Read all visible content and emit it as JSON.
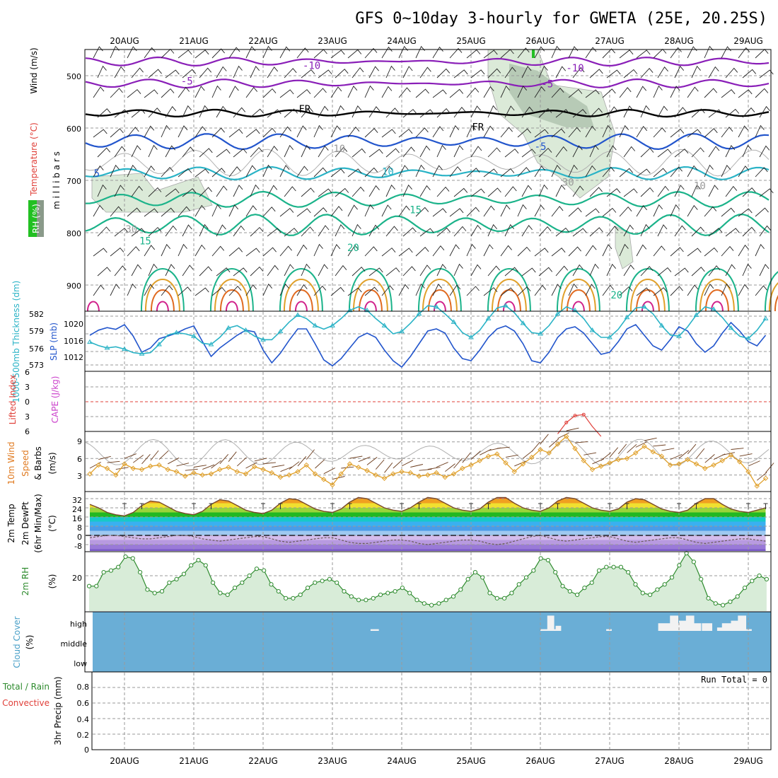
{
  "title": "GFS 0~10day 3-hourly for GWETA (25E, 20.25S)",
  "dates": [
    "20AUG",
    "21AUG",
    "22AUG",
    "23AUG",
    "24AUG",
    "25AUG",
    "26AUG",
    "27AUG",
    "28AUG",
    "29AUG"
  ],
  "run_total": "Run Total = 0",
  "colors": {
    "purple": "#8a1fb8",
    "blue": "#2255cc",
    "cyan": "#2ab3c6",
    "teal": "#1bb38a",
    "orange": "#e0a02a",
    "red": "#e06a20",
    "magenta": "#d0208a",
    "cloud": "#6aaed6",
    "rh_fill": "#d8ecd8",
    "rh_line": "#2e8b2e"
  },
  "chart_data": [
    {
      "id": "upper-air",
      "type": "contour",
      "ylabel_parts": [
        {
          "text": "Wind (m/s)",
          "color": "#000000"
        },
        {
          "text": "Temperature (°C)",
          "color": "#e0403a"
        },
        {
          "text": "RH (%)",
          "color": "#2e8b2e"
        }
      ],
      "y_unit_label": "m i l l i b a r s",
      "y_ticks": [
        500,
        600,
        700,
        800,
        900
      ],
      "ylim": [
        455,
        940
      ],
      "contour_labels": [
        {
          "text": "-10",
          "day": 2.7,
          "p": 487,
          "color": "#8a1fb8"
        },
        {
          "text": "-10",
          "day": 6.5,
          "p": 492,
          "color": "#8a1fb8"
        },
        {
          "text": "-5",
          "day": 0.9,
          "p": 517,
          "color": "#8a1fb8"
        },
        {
          "text": "-5",
          "day": 6.1,
          "p": 522,
          "color": "#8a1fb8"
        },
        {
          "text": "FR",
          "day": 2.6,
          "p": 570,
          "color": "#000000"
        },
        {
          "text": "FR",
          "day": 5.1,
          "p": 605,
          "color": "#000000"
        },
        {
          "text": "-5",
          "day": 6.0,
          "p": 642,
          "color": "#2255cc"
        },
        {
          "text": "5",
          "day": -0.4,
          "p": 693,
          "color": "#2255cc"
        },
        {
          "text": "10",
          "day": 3.8,
          "p": 690,
          "color": "#2ab3c6"
        },
        {
          "text": "15",
          "day": 4.2,
          "p": 763,
          "color": "#1bb38a"
        },
        {
          "text": "15",
          "day": 0.3,
          "p": 822,
          "color": "#1bb38a"
        },
        {
          "text": "20",
          "day": 3.3,
          "p": 835,
          "color": "#1bb38a"
        },
        {
          "text": "20",
          "day": 7.1,
          "p": 926,
          "color": "#1bb38a"
        },
        {
          "text": "10",
          "day": 3.1,
          "p": 646,
          "color": "#9a9a9a"
        },
        {
          "text": "10",
          "day": 8.3,
          "p": 717,
          "color": "#9a9a9a"
        },
        {
          "text": "30",
          "day": 0.1,
          "p": 800,
          "color": "#9a9a9a"
        },
        {
          "text": "30",
          "day": 6.4,
          "p": 710,
          "color": "#9a9a9a"
        }
      ]
    },
    {
      "id": "thickness-slp",
      "type": "line",
      "ylabel_parts": [
        {
          "text": "1000-500mb Thickness (dm)",
          "color": "#2ab3c6"
        },
        {
          "text": "SLP (mb)",
          "color": "#2255cc"
        }
      ],
      "thickness_ticks": [
        573,
        576,
        579,
        582
      ],
      "slp_ticks": [
        1012,
        1016,
        1020
      ],
      "series": [
        {
          "name": "SLP (mb)",
          "color": "#2255cc",
          "values": [
            1018.0,
            1019.2,
            1019.8,
            1019.4,
            1020.5,
            1017.8,
            1014.0,
            1015.0,
            1017.2,
            1017.8,
            1018.5,
            1019.5,
            1020.2,
            1016.5,
            1013.0,
            1015.0,
            1016.5,
            1018.0,
            1019.2,
            1018.8,
            1014.5,
            1011.5,
            1013.8,
            1016.8,
            1019.5,
            1019.5,
            1016.0,
            1012.2,
            1010.8,
            1012.5,
            1015.0,
            1017.5,
            1018.5,
            1017.5,
            1014.5,
            1012.0,
            1010.5,
            1013.0,
            1016.0,
            1019.0,
            1019.5,
            1018.5,
            1015.0,
            1012.5,
            1012.0,
            1014.5,
            1017.5,
            1019.5,
            1020.2,
            1019.0,
            1016.0,
            1012.0,
            1011.5,
            1014.0,
            1017.5,
            1019.5,
            1020.0,
            1018.5,
            1016.0,
            1013.5,
            1014.0,
            1016.5,
            1019.5,
            1020.5,
            1018.0,
            1015.5,
            1014.5,
            1017.0,
            1020.0,
            1019.0,
            1016.0,
            1014.0,
            1015.5,
            1018.5,
            1021.0,
            1019.0,
            1016.5,
            1015.5,
            1018.0,
            1020.5,
            1021.5
          ]
        },
        {
          "name": "1000-500mb Thickness (dm)",
          "color": "#2ab3c6",
          "values": [
            574.6,
            574.0,
            573.6,
            573.8,
            573.4,
            572.8,
            572.6,
            572.8,
            574.2,
            575.8,
            576.2,
            576.0,
            575.6,
            574.4,
            574.2,
            575.4,
            577.0,
            577.4,
            576.6,
            575.6,
            575.0,
            575.0,
            576.4,
            578.0,
            579.2,
            578.6,
            577.4,
            576.8,
            577.4,
            578.6,
            580.0,
            580.6,
            580.0,
            578.6,
            577.4,
            576.0,
            576.4,
            577.8,
            579.4,
            580.8,
            580.6,
            579.4,
            578.0,
            576.2,
            575.4,
            576.6,
            578.6,
            580.4,
            580.8,
            579.6,
            577.8,
            576.2,
            576.0,
            577.4,
            579.4,
            580.6,
            580.0,
            578.6,
            576.6,
            575.4,
            575.4,
            576.8,
            578.8,
            580.4,
            580.6,
            579.4,
            577.4,
            575.8,
            575.6,
            577.2,
            579.2,
            580.6,
            580.2,
            578.8,
            577.0,
            575.6,
            575.2,
            576.6,
            578.6,
            580.0,
            579.6
          ]
        }
      ]
    },
    {
      "id": "cape-li",
      "type": "line",
      "ylabel_parts": [
        {
          "text": "CAPE (J/kg)",
          "color": "#cc44cc"
        },
        {
          "text": "Lifted Index",
          "color": "#e0403a"
        }
      ],
      "li_ticks": [
        "6",
        "3",
        "0",
        "3",
        "6"
      ],
      "series": [
        {
          "name": "Lifted Index",
          "color": "#e0403a",
          "day_start": 6.25,
          "day_step": 0.125,
          "values": [
            6.5,
            4.2,
            2.8,
            2.6,
            5.0,
            7.0
          ]
        }
      ]
    },
    {
      "id": "wind10m",
      "type": "line",
      "ylabel_parts": [
        {
          "text": "10m Wind",
          "color": "#e07a20"
        },
        {
          "text": "Speed",
          "color": "#e07a20"
        },
        {
          "text": "& Barbs",
          "color": "#000000"
        }
      ],
      "unit": "(m/s)",
      "y_ticks": [
        3,
        6,
        9
      ],
      "ylim": [
        0,
        10.5
      ],
      "series": [
        {
          "name": "10m Wind Speed",
          "color": "#e0a02a",
          "values": [
            3.2,
            4.8,
            4.2,
            3.0,
            5.0,
            4.2,
            4.0,
            4.6,
            4.8,
            4.0,
            3.6,
            2.8,
            3.4,
            3.0,
            3.2,
            4.0,
            4.4,
            3.6,
            3.2,
            4.5,
            4.0,
            3.4,
            2.6,
            3.0,
            3.6,
            4.8,
            3.2,
            2.2,
            1.2,
            3.2,
            5.0,
            4.4,
            3.8,
            3.0,
            2.4,
            3.2,
            3.6,
            3.4,
            2.8,
            3.0,
            3.4,
            2.6,
            3.2,
            4.2,
            4.8,
            5.6,
            6.4,
            6.8,
            5.2,
            3.6,
            5.0,
            6.2,
            7.6,
            7.0,
            8.6,
            10.0,
            7.8,
            5.6,
            4.0,
            4.6,
            5.2,
            5.8,
            6.0,
            7.0,
            8.2,
            7.2,
            6.4,
            4.8,
            5.0,
            5.8,
            5.0,
            4.2,
            4.8,
            5.6,
            6.6,
            5.4,
            3.6,
            1.0,
            2.4,
            4.2,
            3.4
          ]
        }
      ]
    },
    {
      "id": "temp2m",
      "type": "line",
      "ylabel_parts": [
        {
          "text": "2m Temp",
          "color": "#000000"
        },
        {
          "text": "2m DewPt",
          "color": "#000000"
        },
        {
          "text": "(6hr Min/Max)",
          "color": "#000000"
        }
      ],
      "unit": "(°C)",
      "y_ticks": [
        "32",
        "24",
        "16",
        "8",
        "0",
        "-8"
      ],
      "ylim": [
        -16,
        36
      ],
      "series": [
        {
          "name": "2m Temp",
          "color": "#7a4a2a",
          "values": [
            27,
            24,
            20,
            18,
            17,
            20,
            26,
            30,
            29,
            25,
            21,
            19,
            18,
            21,
            27,
            31,
            30,
            26,
            22,
            20,
            19,
            22,
            28,
            32,
            31,
            27,
            23,
            21,
            20,
            23,
            29,
            33,
            32,
            28,
            24,
            22,
            21,
            24,
            29,
            33,
            32,
            28,
            24,
            22,
            21,
            23,
            29,
            33,
            33,
            28,
            24,
            22,
            21,
            24,
            30,
            33,
            32,
            28,
            24,
            22,
            21,
            23,
            29,
            32,
            31,
            27,
            23,
            21,
            20,
            22,
            28,
            32,
            32,
            27,
            23,
            21,
            20,
            22,
            24,
            20,
            22
          ]
        },
        {
          "name": "2m DewPt",
          "color": "#6a5a5a",
          "values": [
            -2,
            -1,
            0,
            0,
            -1,
            -2,
            -3,
            -3,
            -2,
            -1,
            0,
            0,
            -1,
            -3,
            -4,
            -5,
            -4,
            -3,
            -2,
            -1,
            -1,
            -3,
            -5,
            -6,
            -5,
            -4,
            -3,
            -2,
            -2,
            -4,
            -6,
            -7,
            -7,
            -6,
            -5,
            -4,
            -4,
            -5,
            -7,
            -8,
            -7,
            -6,
            -5,
            -4,
            -4,
            -5,
            -7,
            -8,
            -7,
            -5,
            -3,
            -1,
            0,
            -2,
            -4,
            -5,
            -4,
            -3,
            -2,
            -1,
            -1,
            -3,
            -5,
            -6,
            -5,
            -4,
            -3,
            -2,
            -2,
            -4,
            -6,
            -7,
            -6,
            -5,
            -4,
            -3,
            -3,
            -4,
            -5,
            -4,
            -3
          ]
        }
      ]
    },
    {
      "id": "rh2m",
      "type": "area",
      "ylabel_parts": [
        {
          "text": "2m RH",
          "color": "#2e8b2e"
        }
      ],
      "unit": "(%)",
      "y_ticks": [
        20
      ],
      "ylim": [
        0,
        40
      ],
      "series": [
        {
          "name": "2m RH",
          "color": "#2e8b2e",
          "values": [
            14,
            14,
            22,
            23,
            25,
            31,
            30,
            22,
            12,
            10,
            11,
            16,
            18,
            21,
            26,
            29,
            26,
            16,
            10,
            9,
            13,
            16,
            20,
            24,
            23,
            15,
            11,
            7,
            7,
            9,
            13,
            16,
            17,
            18,
            16,
            11,
            8,
            6,
            6,
            7,
            9,
            10,
            11,
            13,
            10,
            6,
            4,
            3,
            4,
            6,
            8,
            12,
            18,
            22,
            19,
            10,
            7,
            7,
            10,
            15,
            19,
            23,
            30,
            29,
            22,
            14,
            11,
            9,
            13,
            16,
            23,
            25,
            25,
            25,
            22,
            15,
            10,
            9,
            12,
            15,
            19,
            26,
            33,
            28,
            18,
            7,
            4,
            3,
            5,
            8,
            13,
            17,
            20,
            18
          ]
        }
      ]
    },
    {
      "id": "cloud",
      "type": "bar",
      "ylabel_parts": [
        {
          "text": "Cloud Cover",
          "color": "#4aa0c8"
        }
      ],
      "unit": "(%)",
      "categories": [
        "high",
        "middle",
        "low"
      ],
      "high_gaps": [
        {
          "day": 3.55,
          "width_days": 0.12,
          "depth": 0.1
        },
        {
          "day": 6.0,
          "width_days": 0.25,
          "depth": 0.1
        },
        {
          "day": 6.1,
          "width_days": 0.1,
          "depth": 0.9
        },
        {
          "day": 6.22,
          "width_days": 0.08,
          "depth": 0.3
        },
        {
          "day": 6.95,
          "width_days": 0.08,
          "depth": 0.1
        },
        {
          "day": 7.7,
          "width_days": 0.62,
          "depth": 0.45
        },
        {
          "day": 7.87,
          "width_days": 0.12,
          "depth": 0.9
        },
        {
          "day": 8.0,
          "width_days": 0.15,
          "depth": 0.6
        },
        {
          "day": 8.1,
          "width_days": 0.12,
          "depth": 0.9
        },
        {
          "day": 8.33,
          "width_days": 0.15,
          "depth": 0.45
        },
        {
          "day": 8.55,
          "width_days": 0.1,
          "depth": 0.2
        },
        {
          "day": 8.62,
          "width_days": 0.15,
          "depth": 0.45
        },
        {
          "day": 8.75,
          "width_days": 0.18,
          "depth": 0.6
        },
        {
          "day": 8.85,
          "width_days": 0.12,
          "depth": 0.9
        },
        {
          "day": 8.97,
          "width_days": 0.08,
          "depth": 0.1
        }
      ]
    },
    {
      "id": "precip",
      "type": "bar",
      "ylabel_parts": [
        {
          "text": "Total / Rain",
          "color": "#2e8b2e"
        },
        {
          "text": "Convective",
          "color": "#e0403a"
        }
      ],
      "ylabel": "3hr Precip (mm)",
      "y_ticks": [
        "0.8",
        "0.6",
        "0.4",
        "0.2",
        "0"
      ],
      "ylim": [
        0,
        0.95
      ],
      "values": []
    }
  ]
}
